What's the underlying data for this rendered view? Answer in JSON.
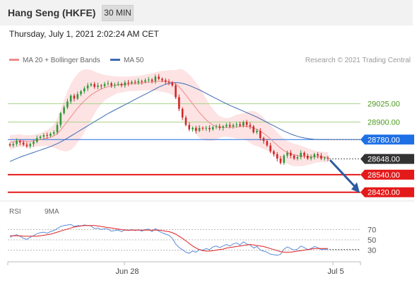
{
  "header": {
    "title": "Hang Seng (HKFE)",
    "timeframe": "30 MIN"
  },
  "datetime": "Thursday, July 1, 2021 2:02:24 AM CET",
  "legend": [
    {
      "label": "MA 20 + Bollinger Bands",
      "color": "#f08a8a"
    },
    {
      "label": "MA 50",
      "color": "#3d6bb3"
    }
  ],
  "copyright": "Research © 2021 Trading Central",
  "rsi_legend": [
    {
      "label": "RSI",
      "color": "#5b8dd9"
    },
    {
      "label": "9MA",
      "color": "#e02020"
    }
  ],
  "colors": {
    "candle_up": "#2f9a3a",
    "candle_down": "#d02727",
    "band_fill": "#fde3e3",
    "ma20": "#f08a8a",
    "ma50": "#3d6bb3",
    "support": "#e41a1a",
    "resistance": "#aad28a",
    "pivot": "#1f6fe5",
    "last": "#333333",
    "arrow": "#2d5aa0"
  },
  "chart_data": [
    {
      "type": "candlestick",
      "ylim": [
        28380,
        29260
      ],
      "x_ticks": [
        "Jun 28",
        "Jul 5"
      ],
      "price_levels": [
        {
          "value": 29025.0,
          "label": "29025.00",
          "kind": "resistance"
        },
        {
          "value": 28900.0,
          "label": "28900.00",
          "kind": "resistance"
        },
        {
          "value": 28780.0,
          "label": "28780.00",
          "kind": "pivot"
        },
        {
          "value": 28648.0,
          "label": "28648.00",
          "kind": "last"
        },
        {
          "value": 28540.0,
          "label": "28540.00",
          "kind": "support"
        },
        {
          "value": 28420.0,
          "label": "28420.00",
          "kind": "support"
        }
      ],
      "close": [
        28740,
        28750,
        28770,
        28760,
        28745,
        28735,
        28750,
        28765,
        28790,
        28800,
        28810,
        28805,
        28820,
        28830,
        28880,
        28960,
        29000,
        29040,
        29080,
        29060,
        29090,
        29110,
        29130,
        29150,
        29160,
        29140,
        29150,
        29145,
        29160,
        29165,
        29150,
        29155,
        29160,
        29150,
        29170,
        29165,
        29175,
        29170,
        29180,
        29175,
        29185,
        29190,
        29180,
        29210,
        29195,
        29185,
        29175,
        29170,
        29150,
        29070,
        28990,
        28930,
        28880,
        28850,
        28860,
        28840,
        28860,
        28855,
        28860,
        28850,
        28865,
        28870,
        28860,
        28870,
        28880,
        28870,
        28880,
        28885,
        28875,
        28900,
        28880,
        28870,
        28830,
        28840,
        28790,
        28770,
        28740,
        28700,
        28680,
        28650,
        28620,
        28670,
        28690,
        28670,
        28650,
        28660,
        28690,
        28670,
        28650,
        28660,
        28680,
        28670,
        28650,
        28655,
        28648
      ],
      "ma20": [
        28760,
        28765,
        28770,
        28772,
        28770,
        28768,
        28768,
        28770,
        28775,
        28780,
        28785,
        28790,
        28795,
        28805,
        28820,
        28845,
        28875,
        28905,
        28935,
        28965,
        28995,
        29020,
        29045,
        29065,
        29085,
        29100,
        29115,
        29125,
        29135,
        29140,
        29145,
        29150,
        29155,
        29155,
        29158,
        29160,
        29162,
        29163,
        29165,
        29168,
        29170,
        29172,
        29174,
        29176,
        29178,
        29178,
        29177,
        29176,
        29170,
        29160,
        29140,
        29115,
        29085,
        29055,
        29025,
        28995,
        28965,
        28940,
        28915,
        28895,
        28880,
        28870,
        28866,
        28864,
        28862,
        28863,
        28866,
        28868,
        28870,
        28872,
        28870,
        28866,
        28858,
        28850,
        28838,
        28823,
        28805,
        28785,
        28763,
        28742,
        28722,
        28705,
        28692,
        28682,
        28675,
        28672,
        28668,
        28665,
        28663,
        28662,
        28662,
        28662,
        28661,
        28660,
        28659
      ],
      "bb_upper": [
        28810,
        28812,
        28815,
        28815,
        28812,
        28810,
        28810,
        28812,
        28818,
        28825,
        28835,
        28845,
        28860,
        28885,
        28925,
        28985,
        29050,
        29110,
        29160,
        29200,
        29230,
        29250,
        29260,
        29260,
        29255,
        29245,
        29235,
        29228,
        29222,
        29218,
        29214,
        29212,
        29211,
        29210,
        29210,
        29210,
        29212,
        29214,
        29216,
        29220,
        29224,
        29228,
        29232,
        29240,
        29245,
        29250,
        29252,
        29255,
        29255,
        29255,
        29262,
        29260,
        29245,
        29225,
        29200,
        29170,
        29140,
        29100,
        29060,
        29020,
        28990,
        28960,
        28940,
        28930,
        28925,
        28930,
        28940,
        28950,
        28955,
        28960,
        28968,
        28975,
        28975,
        28965,
        28950,
        28930,
        28905,
        28880,
        28855,
        28830,
        28805,
        28785,
        28770,
        28760,
        28752,
        28745,
        28738,
        28730,
        28720,
        28712,
        28705,
        28700,
        28697,
        28695,
        28693
      ],
      "bb_lower": [
        28710,
        28718,
        28725,
        28729,
        28728,
        28726,
        28726,
        28728,
        28732,
        28735,
        28735,
        28735,
        28730,
        28725,
        28715,
        28705,
        28700,
        28700,
        28710,
        28730,
        28760,
        28790,
        28830,
        28870,
        28915,
        28955,
        28995,
        29022,
        29048,
        29062,
        29076,
        29088,
        29099,
        29100,
        29106,
        29110,
        29112,
        29112,
        29114,
        29116,
        29116,
        29116,
        29116,
        29112,
        29111,
        29106,
        29102,
        29097,
        29085,
        29065,
        29018,
        28970,
        28925,
        28885,
        28850,
        28820,
        28790,
        28780,
        28770,
        28770,
        28770,
        28780,
        28792,
        28798,
        28799,
        28796,
        28792,
        28786,
        28785,
        28784,
        28772,
        28757,
        28741,
        28735,
        28726,
        28716,
        28705,
        28690,
        28671,
        28654,
        28639,
        28625,
        28614,
        28604,
        28598,
        28599,
        28598,
        28600,
        28606,
        28612,
        28619,
        28624,
        28625,
        28625,
        28625
      ],
      "ma50": [
        28630,
        28640,
        28650,
        28660,
        28668,
        28676,
        28684,
        28692,
        28700,
        28708,
        28716,
        28724,
        28732,
        28742,
        28752,
        28764,
        28776,
        28790,
        28804,
        28818,
        28832,
        28846,
        28860,
        28874,
        28888,
        28902,
        28916,
        28930,
        28944,
        28958,
        28970,
        28982,
        28994,
        29006,
        29018,
        29030,
        29042,
        29054,
        29066,
        29078,
        29090,
        29102,
        29114,
        29126,
        29138,
        29148,
        29158,
        29164,
        29168,
        29170,
        29168,
        29164,
        29158,
        29150,
        29140,
        29130,
        29120,
        29108,
        29096,
        29084,
        29072,
        29060,
        29048,
        29036,
        29025,
        29014,
        29004,
        28994,
        28984,
        28974,
        28964,
        28954,
        28944,
        28934,
        28922,
        28910,
        28898,
        28886,
        28874,
        28862,
        28850,
        28838,
        28828,
        28818,
        28810,
        28802,
        28796,
        28791,
        28787,
        28784,
        28782,
        28781,
        28780,
        28780,
        28780
      ]
    },
    {
      "type": "line",
      "ylim": [
        10,
        90
      ],
      "y_ticks": [
        70,
        50,
        30
      ],
      "series": [
        {
          "name": "RSI",
          "values": [
            55,
            58,
            60,
            57,
            53,
            51,
            55,
            58,
            62,
            64,
            65,
            63,
            66,
            68,
            72,
            76,
            78,
            79,
            80,
            76,
            78,
            77,
            79,
            78,
            77,
            72,
            73,
            70,
            72,
            71,
            67,
            68,
            69,
            66,
            70,
            68,
            70,
            68,
            70,
            67,
            70,
            71,
            66,
            72,
            67,
            64,
            61,
            59,
            53,
            42,
            35,
            31,
            26,
            24,
            28,
            26,
            31,
            30,
            33,
            31,
            36,
            38,
            35,
            38,
            41,
            38,
            42,
            44,
            40,
            46,
            42,
            40,
            34,
            37,
            30,
            28,
            26,
            22,
            21,
            20,
            22,
            32,
            36,
            33,
            30,
            32,
            38,
            35,
            31,
            33,
            37,
            35,
            31,
            32,
            31
          ]
        },
        {
          "name": "9MA",
          "values": [
            58,
            58,
            58,
            58,
            57,
            57,
            57,
            57,
            57,
            58,
            59,
            60,
            61,
            63,
            65,
            67,
            69,
            71,
            73,
            75,
            76,
            77,
            78,
            78,
            78,
            78,
            77,
            76,
            75,
            74,
            73,
            72,
            71,
            70,
            69,
            69,
            69,
            69,
            69,
            69,
            69,
            69,
            69,
            69,
            69,
            68,
            67,
            66,
            64,
            61,
            57,
            53,
            48,
            43,
            38,
            34,
            31,
            29,
            28,
            28,
            29,
            30,
            31,
            32,
            34,
            35,
            36,
            37,
            38,
            39,
            40,
            41,
            40,
            39,
            38,
            37,
            35,
            33,
            31,
            29,
            27,
            26,
            26,
            26,
            27,
            28,
            29,
            30,
            31,
            32,
            33,
            33,
            33,
            33,
            33
          ]
        }
      ]
    }
  ]
}
